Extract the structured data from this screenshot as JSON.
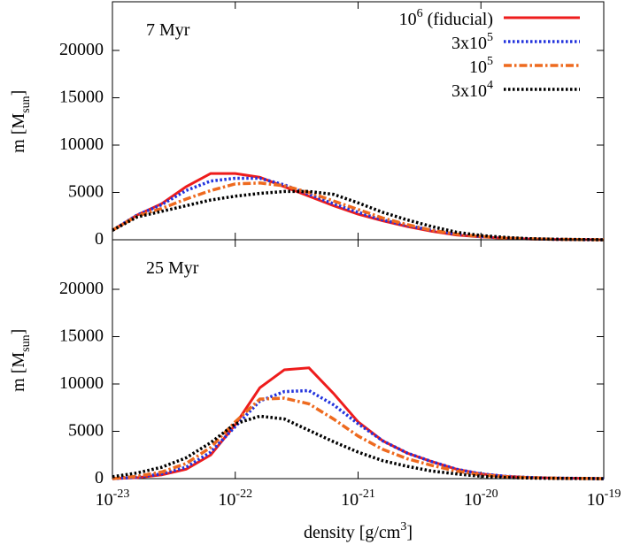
{
  "chart_data": [
    {
      "type": "line",
      "annotation": "7 Myr",
      "ylabel": "m [M_sun]",
      "x": [
        1e-23,
        1.585e-23,
        2.512e-23,
        3.981e-23,
        6.31e-23,
        1e-22,
        1.585e-22,
        2.512e-22,
        3.981e-22,
        6.31e-22,
        1e-21,
        1.585e-21,
        2.512e-21,
        3.981e-21,
        6.31e-21,
        1e-20,
        1.585e-20,
        2.512e-20,
        3.981e-20,
        6.31e-20,
        1e-19
      ],
      "xlim": [
        1e-23,
        1e-19
      ],
      "xscale": "log",
      "ylim": [
        0,
        25000
      ],
      "yticks": [
        0,
        5000,
        10000,
        15000,
        20000
      ],
      "legend": "top-right",
      "series": [
        {
          "name": "10^6 (fiducial)",
          "color": "#ee1c1c",
          "dash": "solid",
          "values": [
            1000,
            2600,
            3800,
            5600,
            7000,
            7000,
            6600,
            5600,
            4600,
            3600,
            2700,
            2000,
            1400,
            900,
            500,
            300,
            150,
            80,
            40,
            20,
            0
          ]
        },
        {
          "name": "3x10^5",
          "color": "#2233dd",
          "dash": "dotted",
          "values": [
            1000,
            2600,
            3700,
            5200,
            6200,
            6500,
            6500,
            5800,
            4800,
            3800,
            2900,
            2100,
            1500,
            1000,
            600,
            350,
            180,
            100,
            50,
            20,
            0
          ]
        },
        {
          "name": "10^5",
          "color": "#ee6a1f",
          "dash": "dashdot",
          "values": [
            1000,
            2500,
            3300,
            4300,
            5200,
            5900,
            6000,
            5700,
            5000,
            4100,
            3200,
            2300,
            1600,
            1000,
            600,
            350,
            180,
            100,
            50,
            20,
            0
          ]
        },
        {
          "name": "3x10^4",
          "color": "#000000",
          "dash": "dotted",
          "values": [
            1000,
            2400,
            3000,
            3600,
            4200,
            4600,
            4900,
            5100,
            5100,
            4800,
            3900,
            2900,
            2100,
            1400,
            800,
            450,
            250,
            120,
            60,
            30,
            0
          ]
        }
      ]
    },
    {
      "type": "line",
      "annotation": "25 Myr",
      "ylabel": "m [M_sun]",
      "xlabel": "density [g/cm^3]",
      "x": [
        1e-23,
        1.585e-23,
        2.512e-23,
        3.981e-23,
        6.31e-23,
        1e-22,
        1.585e-22,
        2.512e-22,
        3.981e-22,
        6.31e-22,
        1e-21,
        1.585e-21,
        2.512e-21,
        3.981e-21,
        6.31e-21,
        1e-20,
        1.585e-20,
        2.512e-20,
        3.981e-20,
        6.31e-20,
        1e-19
      ],
      "xlim": [
        1e-23,
        1e-19
      ],
      "xscale": "log",
      "xticks": [
        {
          "value": 1e-23,
          "label": "10^-23"
        },
        {
          "value": 1e-22,
          "label": "10^-22"
        },
        {
          "value": 1e-21,
          "label": "10^-21"
        },
        {
          "value": 1e-20,
          "label": "10^-20"
        },
        {
          "value": 1e-19,
          "label": "10^-19"
        }
      ],
      "ylim": [
        0,
        25000
      ],
      "yticks": [
        0,
        5000,
        10000,
        15000,
        20000
      ],
      "series": [
        {
          "color": "#ee1c1c",
          "dash": "solid",
          "values": [
            0,
            100,
            400,
            1000,
            2500,
            5700,
            9600,
            11500,
            11700,
            9000,
            6000,
            4000,
            2700,
            1800,
            1000,
            500,
            250,
            120,
            60,
            30,
            0
          ]
        },
        {
          "color": "#2233dd",
          "dash": "dotted",
          "values": [
            0,
            150,
            500,
            1200,
            2800,
            5500,
            8200,
            9200,
            9300,
            7800,
            5800,
            4000,
            2700,
            1800,
            1000,
            500,
            250,
            120,
            60,
            30,
            0
          ]
        },
        {
          "color": "#ee6a1f",
          "dash": "dashdot",
          "values": [
            0,
            250,
            700,
            1600,
            3300,
            6000,
            8400,
            8500,
            7900,
            6300,
            4500,
            3100,
            2100,
            1400,
            800,
            400,
            200,
            100,
            50,
            20,
            0
          ]
        },
        {
          "color": "#000000",
          "dash": "dotted",
          "values": [
            200,
            600,
            1200,
            2200,
            3800,
            5800,
            6600,
            6300,
            5100,
            3900,
            2800,
            1900,
            1300,
            800,
            500,
            250,
            120,
            60,
            30,
            15,
            0
          ]
        }
      ]
    }
  ]
}
